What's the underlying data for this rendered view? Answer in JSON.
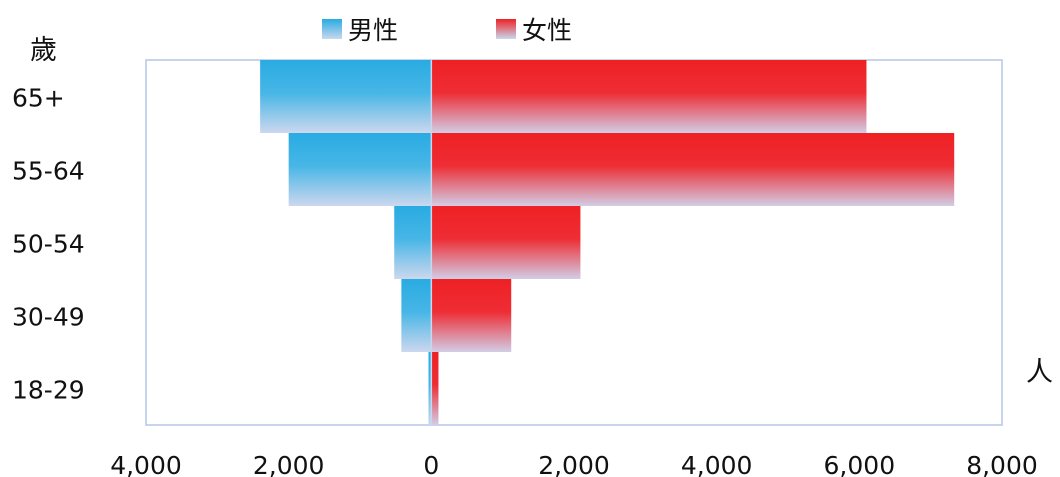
{
  "chart_data": {
    "type": "bar",
    "orientation": "horizontal",
    "subtype": "population-pyramid",
    "ylabel": "歲",
    "xlabel": "人",
    "categories": [
      "65+",
      "55-64",
      "50-54",
      "30-49",
      "18-29"
    ],
    "series": [
      {
        "name": "男性",
        "color": "#29abe2",
        "values": [
          2400,
          2000,
          520,
          420,
          40
        ]
      },
      {
        "name": "女性",
        "color": "#ee2124",
        "values": [
          6100,
          7330,
          2090,
          1120,
          100
        ]
      }
    ],
    "xlim": [
      -4000,
      8000
    ],
    "x_ticks": [
      -4000,
      -2000,
      0,
      2000,
      4000,
      6000,
      8000
    ],
    "x_tick_labels": [
      "4,000",
      "2,000",
      "0",
      "2,000",
      "4,000",
      "6,000",
      "8,000"
    ],
    "legend_position": "top",
    "grid": false
  }
}
